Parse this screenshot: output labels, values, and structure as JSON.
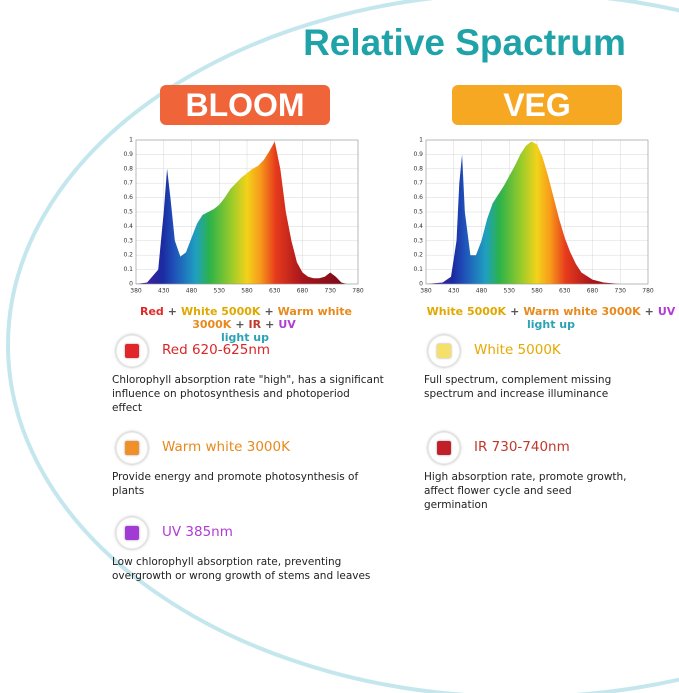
{
  "header": {
    "title": "Relative Spactrum"
  },
  "panels": [
    {
      "badge": "BLOOM",
      "badge_color": "#f0643a",
      "legend": [
        [
          {
            "text": "Red",
            "color": "#e02a2a"
          },
          {
            "text": "+",
            "color": "#555555"
          },
          {
            "text": "White 5000K",
            "color": "#e0a800"
          },
          {
            "text": "+",
            "color": "#555555"
          },
          {
            "text": "Warm white 3000K",
            "color": "#e8891c"
          },
          {
            "text": "+",
            "color": "#555555"
          },
          {
            "text": "IR",
            "color": "#c0392b"
          },
          {
            "text": "+",
            "color": "#555555"
          },
          {
            "text": "UV",
            "color": "#b23bd6"
          }
        ],
        [
          {
            "text": "light up",
            "color": "#2aa3b5"
          }
        ]
      ],
      "features": [
        {
          "label": "Red 620-625nm",
          "label_color": "#d9262a",
          "icon_color": "#e0262a",
          "description": [
            "Chlorophyll absorption rate \"high\", has a significant",
            "influence on photosynthesis and photoperiod",
            "effect"
          ]
        },
        {
          "label": "Warm white 3000K",
          "label_color": "#e8891c",
          "icon_color": "#f0902a",
          "description": [
            "Provide energy and promote photosynthesis of",
            "plants"
          ]
        },
        {
          "label": "UV 385nm",
          "label_color": "#b23bd6",
          "icon_color": "#a23bd6",
          "description": [
            "Low chlorophyll absorption rate, preventing",
            "overgrowth or wrong growth of stems and leaves"
          ]
        }
      ]
    },
    {
      "badge": "VEG",
      "badge_color": "#f7a823",
      "legend": [
        [
          {
            "text": "White 5000K",
            "color": "#e0a800"
          },
          {
            "text": "+",
            "color": "#555555"
          },
          {
            "text": "Warm white 3000K",
            "color": "#e8891c"
          },
          {
            "text": "+",
            "color": "#555555"
          },
          {
            "text": "UV",
            "color": "#b23bd6"
          }
        ],
        [
          {
            "text": "light up",
            "color": "#2aa3b5"
          }
        ]
      ],
      "features": [
        {
          "label": "White 5000K",
          "label_color": "#e8a800",
          "icon_color": "#f5e06a",
          "description": [
            "Full spectrum, complement missing",
            "spectrum and increase illuminance"
          ]
        },
        {
          "label": "IR 730-740nm",
          "label_color": "#c0392b",
          "icon_color": "#c0202a",
          "description": [
            "High absorption rate, promote growth,",
            "affect flower cycle and seed",
            "germination"
          ]
        }
      ]
    }
  ],
  "chart_data": [
    {
      "type": "area",
      "grid": true,
      "x": [
        380,
        400,
        420,
        430,
        436,
        442,
        450,
        460,
        470,
        480,
        490,
        500,
        510,
        520,
        530,
        540,
        550,
        560,
        570,
        580,
        590,
        600,
        610,
        620,
        630,
        640,
        650,
        660,
        670,
        680,
        690,
        700,
        710,
        720,
        730,
        740,
        750,
        760,
        780
      ],
      "values": [
        0,
        0.01,
        0.1,
        0.5,
        0.8,
        0.6,
        0.3,
        0.19,
        0.22,
        0.32,
        0.42,
        0.48,
        0.5,
        0.52,
        0.55,
        0.6,
        0.66,
        0.7,
        0.74,
        0.77,
        0.8,
        0.82,
        0.86,
        0.92,
        0.99,
        0.8,
        0.5,
        0.3,
        0.15,
        0.08,
        0.05,
        0.04,
        0.04,
        0.05,
        0.08,
        0.05,
        0.01,
        0,
        0
      ],
      "xlim": [
        380,
        780
      ],
      "ylim": [
        0,
        1
      ],
      "xticks": [
        380,
        430,
        480,
        530,
        580,
        630,
        680,
        730,
        780
      ],
      "yticks": [
        0,
        0.1,
        0.2,
        0.3,
        0.4,
        0.5,
        0.6,
        0.7,
        0.8,
        0.9,
        1
      ]
    },
    {
      "type": "area",
      "grid": true,
      "x": [
        380,
        410,
        425,
        435,
        440,
        445,
        450,
        460,
        470,
        480,
        490,
        500,
        510,
        520,
        530,
        540,
        550,
        560,
        570,
        580,
        590,
        600,
        610,
        620,
        630,
        640,
        650,
        660,
        680,
        700,
        730,
        780
      ],
      "values": [
        0,
        0.01,
        0.05,
        0.3,
        0.7,
        0.9,
        0.5,
        0.2,
        0.2,
        0.3,
        0.45,
        0.56,
        0.62,
        0.68,
        0.75,
        0.82,
        0.9,
        0.96,
        0.99,
        0.97,
        0.88,
        0.75,
        0.6,
        0.45,
        0.32,
        0.22,
        0.14,
        0.08,
        0.03,
        0.01,
        0,
        0
      ],
      "xlim": [
        380,
        780
      ],
      "ylim": [
        0,
        1
      ],
      "xticks": [
        380,
        430,
        480,
        530,
        580,
        630,
        680,
        730,
        780
      ],
      "yticks": [
        0,
        0.1,
        0.2,
        0.3,
        0.4,
        0.5,
        0.6,
        0.7,
        0.8,
        0.9,
        1
      ]
    }
  ]
}
